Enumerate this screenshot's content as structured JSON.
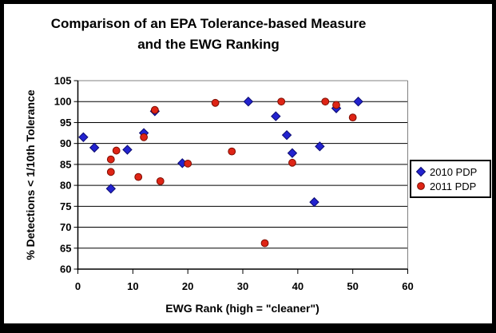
{
  "title_lines": [
    "Comparison of an EPA Tolerance-based Measure",
    "and the EWG Ranking"
  ],
  "chart_data": {
    "type": "scatter",
    "title": "Comparison of an EPA Tolerance-based Measure and the EWG Ranking",
    "xlabel": "EWG Rank (high = \"cleaner\")",
    "ylabel": "% Detections < 1/10th Tolerance",
    "xlim": [
      0,
      60
    ],
    "ylim": [
      60,
      105
    ],
    "x_ticks": [
      0,
      10,
      20,
      30,
      40,
      50,
      60
    ],
    "y_ticks": [
      60,
      65,
      70,
      75,
      80,
      85,
      90,
      95,
      100,
      105
    ],
    "grid": "horizontal",
    "legend_position": "right",
    "background": "#ffffff",
    "gridline_color": "#000000",
    "plot_border_color": "#808080",
    "series": [
      {
        "name": "2010 PDP",
        "marker": "diamond",
        "color": "#2323CF",
        "edge_color": "#0A0A70",
        "points": [
          [
            1,
            91.5
          ],
          [
            3,
            89.0
          ],
          [
            6,
            79.2
          ],
          [
            9,
            88.5
          ],
          [
            12,
            92.5
          ],
          [
            14,
            97.7
          ],
          [
            19,
            85.3
          ],
          [
            31,
            100.0
          ],
          [
            36,
            96.5
          ],
          [
            38,
            92.0
          ],
          [
            39,
            87.7
          ],
          [
            43,
            76.0
          ],
          [
            44,
            89.3
          ],
          [
            47,
            98.4
          ],
          [
            51,
            100.0
          ]
        ]
      },
      {
        "name": "2011 PDP",
        "marker": "circle",
        "color": "#DE2415",
        "edge_color": "#7C0C00",
        "points": [
          [
            6,
            83.2
          ],
          [
            6,
            86.2
          ],
          [
            7,
            88.3
          ],
          [
            11,
            82.0
          ],
          [
            12,
            91.5
          ],
          [
            14,
            98.0
          ],
          [
            15,
            81.0
          ],
          [
            20,
            85.2
          ],
          [
            25,
            99.7
          ],
          [
            28,
            88.1
          ],
          [
            34,
            66.2
          ],
          [
            37,
            100.0
          ],
          [
            39,
            85.4
          ],
          [
            45,
            100.0
          ],
          [
            47,
            99.2
          ],
          [
            50,
            96.2
          ]
        ]
      }
    ]
  }
}
